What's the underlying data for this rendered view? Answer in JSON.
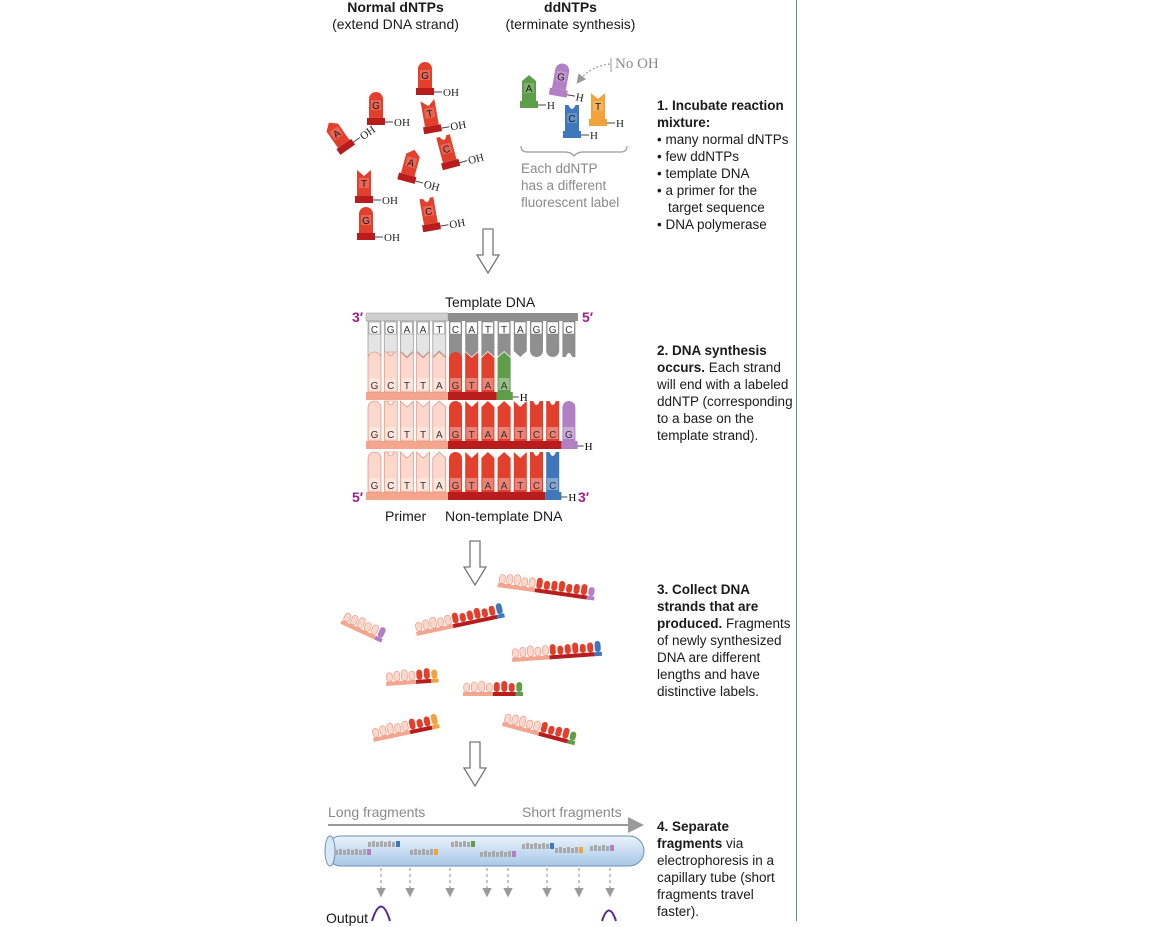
{
  "headers": {
    "normal_title": "Normal dNTPs",
    "normal_sub": "(extend DNA strand)",
    "dd_title": "ddNTPs",
    "dd_sub": "(terminate synthesis)"
  },
  "labels": {
    "no_oh": "No OH",
    "oh": "OH",
    "h": "H",
    "dd_note": [
      "Each ddNTP",
      "has a different",
      "fluorescent label"
    ],
    "template_dna": "Template DNA",
    "three_prime": "3′",
    "five_prime": "5′",
    "primer": "Primer",
    "non_template": "Non-template DNA",
    "long_fragments": "Long fragments",
    "short_fragments": "Short fragments",
    "output": "Output"
  },
  "steps": [
    {
      "title": "1. Incubate reaction mixture:",
      "items": [
        "many normal dNTPs",
        "few ddNTPs",
        "template DNA",
        "a primer for the target sequence",
        "DNA polymerase"
      ]
    },
    {
      "title": "2. DNA synthesis occurs.",
      "body": " Each strand will end with a labeled ddNTP (corresponding to a base on the template strand)."
    },
    {
      "title": "3. Collect DNA strands that are produced.",
      "body": " Fragments of newly synthesized DNA are different lengths and have distinctive labels."
    },
    {
      "title": "4. Separate fragments",
      "body": " via electrophoresis in a capillary tube (short fragments travel faster)."
    }
  ],
  "dntps": [
    "G",
    "G",
    "T",
    "A",
    "A",
    "C",
    "T",
    "C",
    "G"
  ],
  "ddntps": [
    "A",
    "G",
    "C",
    "T"
  ],
  "template": {
    "light": [
      "C",
      "G",
      "A",
      "A",
      "T"
    ],
    "dark": [
      "C",
      "A",
      "T",
      "T",
      "A",
      "G",
      "G",
      "C"
    ]
  },
  "strands": [
    {
      "primer": [
        "G",
        "C",
        "T",
        "T",
        "A"
      ],
      "new": [
        "G",
        "T",
        "A"
      ],
      "dd": "A"
    },
    {
      "primer": [
        "G",
        "C",
        "T",
        "T",
        "A"
      ],
      "new": [
        "G",
        "T",
        "A",
        "A",
        "T",
        "C",
        "C"
      ],
      "dd": "G"
    },
    {
      "primer": [
        "G",
        "C",
        "T",
        "T",
        "A"
      ],
      "new": [
        "G",
        "T",
        "A",
        "A",
        "T",
        "C"
      ],
      "dd": "C"
    }
  ],
  "colors": {
    "dntp": "#e2402c",
    "dntp_dark": "#b81c1c",
    "primer": "#f3a58e",
    "primer_light": "#fbd8cb",
    "template_light": "#d8d8d8",
    "template_dark": "#8f8f8f",
    "dd_A": "#5e9e48",
    "dd_G": "#b17fc4",
    "dd_C": "#3f77bd",
    "dd_T": "#f2a23a",
    "prime": "#a0208a",
    "tube": "#cfe2f5",
    "peak": "#5a2a8a"
  }
}
